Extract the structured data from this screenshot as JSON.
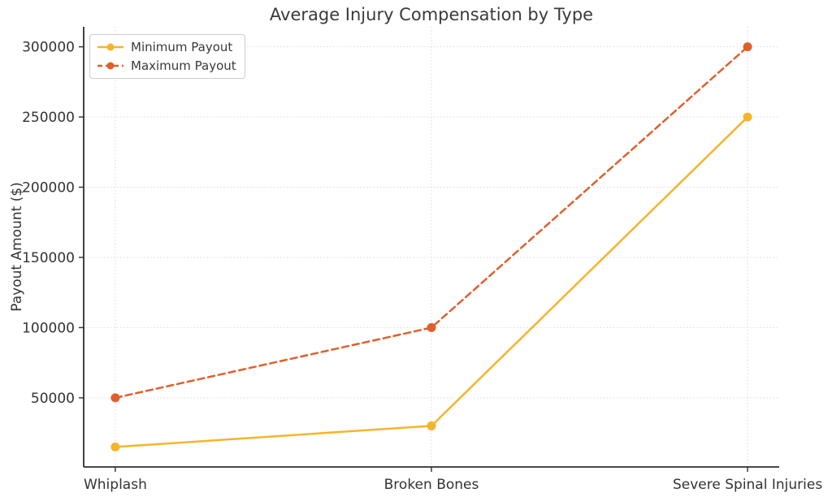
{
  "chart_data": {
    "type": "line",
    "title": "Average Injury Compensation by Type",
    "xlabel": "",
    "ylabel": "Payout Amount ($)",
    "categories": [
      "Whiplash",
      "Broken Bones",
      "Severe Spinal Injuries"
    ],
    "series": [
      {
        "name": "Minimum Payout",
        "values": [
          15000,
          30000,
          250000
        ],
        "color": "#F6B42A",
        "line_style": "solid",
        "marker": "circle"
      },
      {
        "name": "Maximum Payout",
        "values": [
          50000,
          100000,
          300000
        ],
        "color": "#E05F2B",
        "line_style": "dashed",
        "marker": "circle"
      }
    ],
    "y_ticks": [
      50000,
      100000,
      150000,
      200000,
      250000,
      300000
    ],
    "ylim": [
      750,
      314250
    ],
    "x_margin": 0.1,
    "grid": true,
    "grid_style": "dotted",
    "legend_position": "upper left"
  },
  "theme": {
    "background": "#ffffff",
    "text_color": "#333333",
    "title_color": "#3a3a3a",
    "grid_color": "#d9d9d9",
    "spine_color": "#2e2e2e",
    "legend_border_color": "#cccccc"
  }
}
